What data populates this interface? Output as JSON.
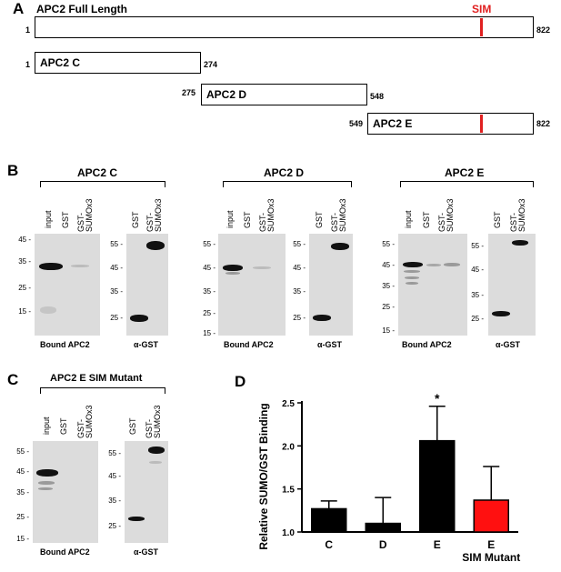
{
  "panel_a": {
    "letter": "A",
    "title": "APC2 Full Length",
    "sim_label": "SIM",
    "sim_color": "#e02020",
    "full": {
      "start": "1",
      "end": "822"
    },
    "c": {
      "label": "APC2 C",
      "start": "1",
      "end": "274"
    },
    "d": {
      "label": "APC2 D",
      "start": "275",
      "end": "548"
    },
    "e": {
      "label": "APC2 E",
      "start": "549",
      "end": "822"
    }
  },
  "panel_b": {
    "letter": "B",
    "c": {
      "title": "APC2 C",
      "lanes_left": [
        "input",
        "GST",
        "GST-\nSUMOx3"
      ],
      "lanes_right": [
        "GST",
        "GST-\nSUMOx3"
      ],
      "mw_left": [
        "45 -",
        "35 -",
        "25 -",
        "15 -"
      ],
      "mw_right": [
        "55 -",
        "45 -",
        "35 -",
        "25 -"
      ],
      "caption_left": "Bound APC2",
      "caption_right": "α-GST"
    },
    "d": {
      "title": "APC2 D",
      "lanes_left": [
        "input",
        "GST",
        "GST-\nSUMOx3"
      ],
      "lanes_right": [
        "GST",
        "GST-\nSUMOx3"
      ],
      "mw_left": [
        "55 -",
        "45 -",
        "35 -",
        "25 -",
        "15 -"
      ],
      "mw_right": [
        "55 -",
        "45 -",
        "35 -",
        "25 -"
      ],
      "caption_left": "Bound APC2",
      "caption_right": "α-GST"
    },
    "e": {
      "title": "APC2 E",
      "lanes_left": [
        "input",
        "GST",
        "GST-\nSUMOx3"
      ],
      "lanes_right": [
        "GST",
        "GST-\nSUMOx3"
      ],
      "mw_left": [
        "55 -",
        "45 -",
        "35 -",
        "25 -",
        "15 -"
      ],
      "mw_right": [
        "55 -",
        "45 -",
        "35 -",
        "25 -"
      ],
      "caption_left": "Bound APC2",
      "caption_right": "α-GST"
    }
  },
  "panel_c": {
    "letter": "C",
    "title": "APC2 E SIM Mutant",
    "lanes_left": [
      "input",
      "GST",
      "GST-\nSUMOx3"
    ],
    "lanes_right": [
      "GST",
      "GST-\nSUMOx3"
    ],
    "mw_left": [
      "55 -",
      "45 -",
      "35 -",
      "25 -",
      "15 -"
    ],
    "mw_right": [
      "55 -",
      "45 -",
      "35 -",
      "25 -"
    ],
    "caption_left": "Bound APC2",
    "caption_right": "α-GST"
  },
  "panel_d": {
    "letter": "D",
    "sig_marker": "*",
    "cat2_line2": "SIM Mutant"
  },
  "chart_data": {
    "type": "bar",
    "categories": [
      "C",
      "D",
      "E",
      "E"
    ],
    "values": [
      1.27,
      1.1,
      2.06,
      1.37
    ],
    "errors": [
      0.09,
      0.3,
      0.4,
      0.39
    ],
    "colors": [
      "#000000",
      "#000000",
      "#000000",
      "#ff1010"
    ],
    "ylabel": "Relative SUMO/GST Binding",
    "ylim": [
      1.0,
      2.5
    ],
    "yticks": [
      "1.0",
      "1.5",
      "2.0",
      "2.5"
    ],
    "annotation": "*"
  }
}
